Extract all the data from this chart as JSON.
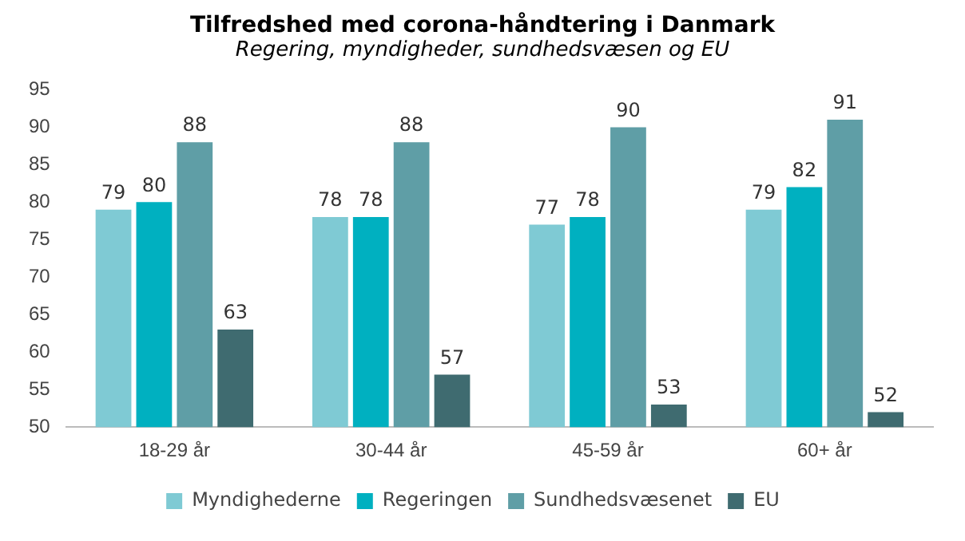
{
  "chart_data": {
    "type": "bar",
    "title": "Tilfredshed med corona-håndtering i Danmark",
    "subtitle": "Regering, myndigheder, sundhedsvæsen og EU",
    "categories": [
      "18-29 år",
      "30-44 år",
      "45-59 år",
      "60+ år"
    ],
    "series": [
      {
        "name": "Myndighederne",
        "color": "#7fcad4",
        "values": [
          79,
          78,
          77,
          79
        ]
      },
      {
        "name": "Regeringen",
        "color": "#00b0c0",
        "values": [
          80,
          78,
          78,
          82
        ]
      },
      {
        "name": "Sundhedsvæsenet",
        "color": "#5f9ea6",
        "values": [
          88,
          88,
          90,
          91
        ]
      },
      {
        "name": "EU",
        "color": "#3f6b70",
        "values": [
          63,
          57,
          53,
          52
        ]
      }
    ],
    "ylim": [
      50,
      95
    ],
    "yticks": [
      50,
      55,
      60,
      65,
      70,
      75,
      80,
      85,
      90,
      95
    ],
    "grid": false,
    "legend": "bottom",
    "data_labels": true
  }
}
